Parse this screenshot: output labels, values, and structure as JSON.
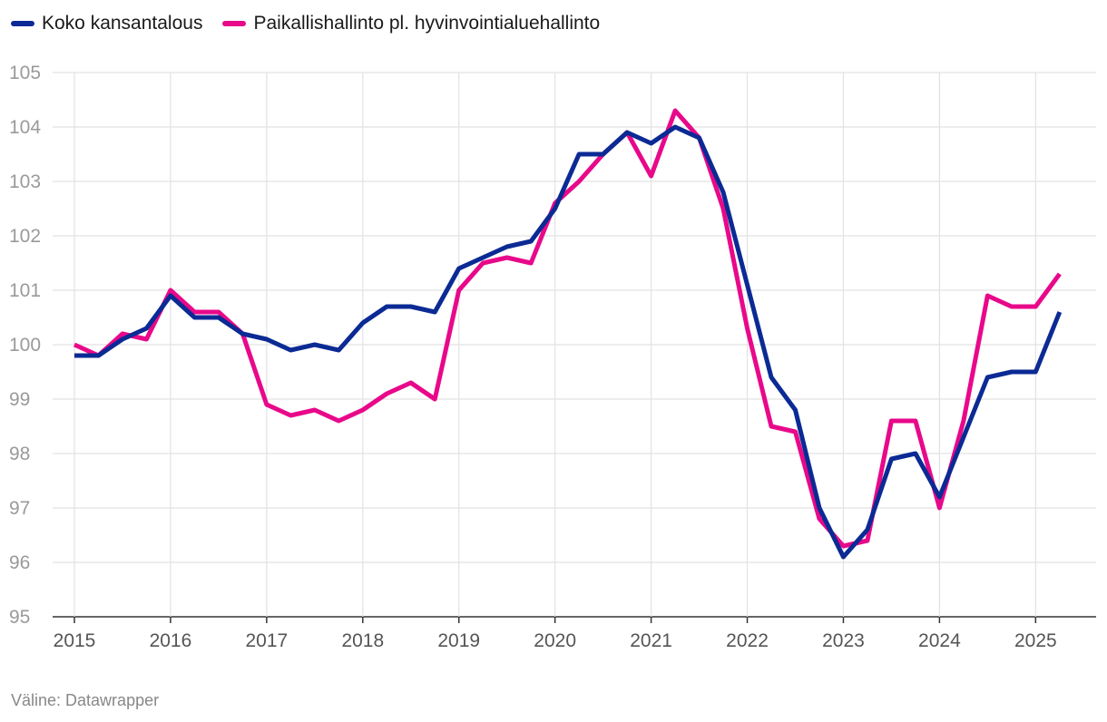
{
  "colors": {
    "series_1": "#0b2a94",
    "series_2": "#e8088a",
    "grid": "#e2e2e2",
    "axis": "#333333"
  },
  "source": "Väline: Datawrapper",
  "chart_data": {
    "type": "line",
    "title": "",
    "xlabel": "",
    "ylabel": "",
    "ylim": [
      95,
      105
    ],
    "xlim": [
      2015,
      2025.45
    ],
    "grid": true,
    "legend": "top-left",
    "y_ticks": [
      "95",
      "96",
      "97",
      "98",
      "99",
      "100",
      "101",
      "102",
      "103",
      "104",
      "105"
    ],
    "x_ticks": [
      "2015",
      "2016",
      "2017",
      "2018",
      "2019",
      "2020",
      "2021",
      "2022",
      "2023",
      "2024",
      "2025"
    ],
    "x": [
      2015.0,
      2015.25,
      2015.5,
      2015.75,
      2016.0,
      2016.25,
      2016.5,
      2016.75,
      2017.0,
      2017.25,
      2017.5,
      2017.75,
      2018.0,
      2018.25,
      2018.5,
      2018.75,
      2019.0,
      2019.25,
      2019.5,
      2019.75,
      2020.0,
      2020.25,
      2020.5,
      2020.75,
      2021.0,
      2021.25,
      2021.5,
      2021.75,
      2022.0,
      2022.25,
      2022.5,
      2022.75,
      2023.0,
      2023.25,
      2023.5,
      2023.75,
      2024.0,
      2024.25,
      2024.5,
      2024.75,
      2025.0,
      2025.25
    ],
    "series": [
      {
        "name": "Koko kansantalous",
        "values": [
          99.8,
          99.8,
          100.1,
          100.3,
          100.9,
          100.5,
          100.5,
          100.2,
          100.1,
          99.9,
          100.0,
          99.9,
          100.4,
          100.7,
          100.7,
          100.6,
          101.4,
          101.6,
          101.8,
          101.9,
          102.5,
          103.5,
          103.5,
          103.9,
          103.7,
          104.0,
          103.8,
          102.8,
          101.1,
          99.4,
          98.8,
          97.0,
          96.1,
          96.6,
          97.9,
          98.0,
          97.2,
          98.3,
          99.4,
          99.5,
          99.5,
          100.6
        ]
      },
      {
        "name": "Paikallishallinto pl. hyvinvointialuehallinto",
        "values": [
          100.0,
          99.8,
          100.2,
          100.1,
          101.0,
          100.6,
          100.6,
          100.2,
          98.9,
          98.7,
          98.8,
          98.6,
          98.8,
          99.1,
          99.3,
          99.0,
          101.0,
          101.5,
          101.6,
          101.5,
          102.6,
          103.0,
          103.5,
          103.9,
          103.1,
          104.3,
          103.8,
          102.5,
          100.3,
          98.5,
          98.4,
          96.8,
          96.3,
          96.4,
          98.6,
          98.6,
          97.0,
          98.6,
          100.9,
          100.7,
          100.7,
          101.3
        ]
      }
    ]
  }
}
